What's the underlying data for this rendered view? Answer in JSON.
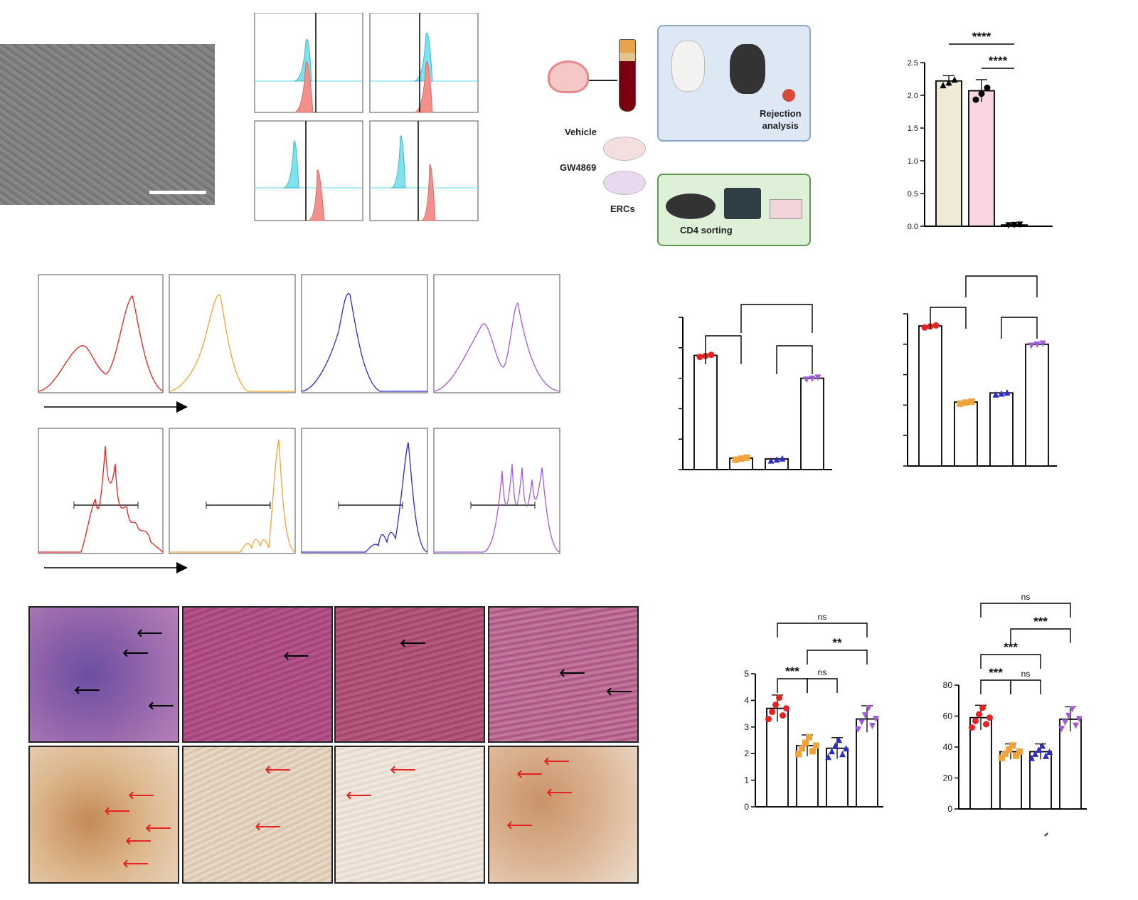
{
  "schematic": {
    "vehicle": "Vehicle",
    "gw4869": "GW4869",
    "ercs": "ERCs",
    "rejection": [
      "Rejection",
      "analysis"
    ],
    "cd4": "CD4 sorting"
  },
  "colors": {
    "red": "#e52421",
    "orange": "#f0a33a",
    "blue": "#2c2cc8",
    "purple": "#a25ad9",
    "cyan": "#5fd8ea",
    "salmon": "#f08a86"
  },
  "chart_data": [
    {
      "type": "bar",
      "id": "top-right-bar",
      "categories": [
        "",
        "",
        ""
      ],
      "values": [
        2.22,
        2.07,
        0.02
      ],
      "errors": [
        0.08,
        0.17,
        0.01
      ],
      "ylim": [
        0,
        2.5
      ],
      "yticks": [
        "0.0",
        "0.5",
        "1.0",
        "1.5",
        "2.0",
        "2.5"
      ],
      "bar_colors": [
        "#efe9d8",
        "#f9d6e0",
        "#ffffff"
      ],
      "significance": [
        "****",
        "****"
      ]
    },
    {
      "type": "bar",
      "id": "mid-bar-1",
      "categories": [
        "",
        "",
        "",
        ""
      ],
      "values": [
        0.75,
        0.075,
        0.07,
        0.6
      ],
      "ylim": [
        0,
        1.0
      ],
      "marker_colors": [
        "#e52421",
        "#f0a33a",
        "#2c2cc8",
        "#a25ad9"
      ]
    },
    {
      "type": "bar",
      "id": "mid-bar-2",
      "categories": [
        "",
        "",
        "",
        ""
      ],
      "values": [
        0.92,
        0.42,
        0.48,
        0.8
      ],
      "ylim": [
        0,
        1.0
      ],
      "marker_colors": [
        "#e52421",
        "#f0a33a",
        "#2c2cc8",
        "#a25ad9"
      ]
    },
    {
      "type": "bar",
      "id": "bottom-bar-1",
      "categories": [
        "",
        "",
        "",
        ""
      ],
      "values": [
        3.7,
        2.3,
        2.2,
        3.3
      ],
      "errors": [
        0.5,
        0.4,
        0.4,
        0.5
      ],
      "ylim": [
        0,
        5
      ],
      "yticks": [
        "0",
        "1",
        "2",
        "3",
        "4",
        "5"
      ],
      "significance": [
        "ns",
        "**",
        "***",
        "ns"
      ]
    },
    {
      "type": "bar",
      "id": "bottom-bar-2",
      "categories": [
        "",
        "",
        "",
        ""
      ],
      "values": [
        59,
        37,
        37,
        58
      ],
      "errors": [
        8,
        5,
        5,
        8
      ],
      "ylim": [
        0,
        80
      ],
      "yticks": [
        "0",
        "20",
        "40",
        "60",
        "80"
      ],
      "significance": [
        "ns",
        "***",
        "***",
        "***",
        "ns"
      ]
    }
  ]
}
